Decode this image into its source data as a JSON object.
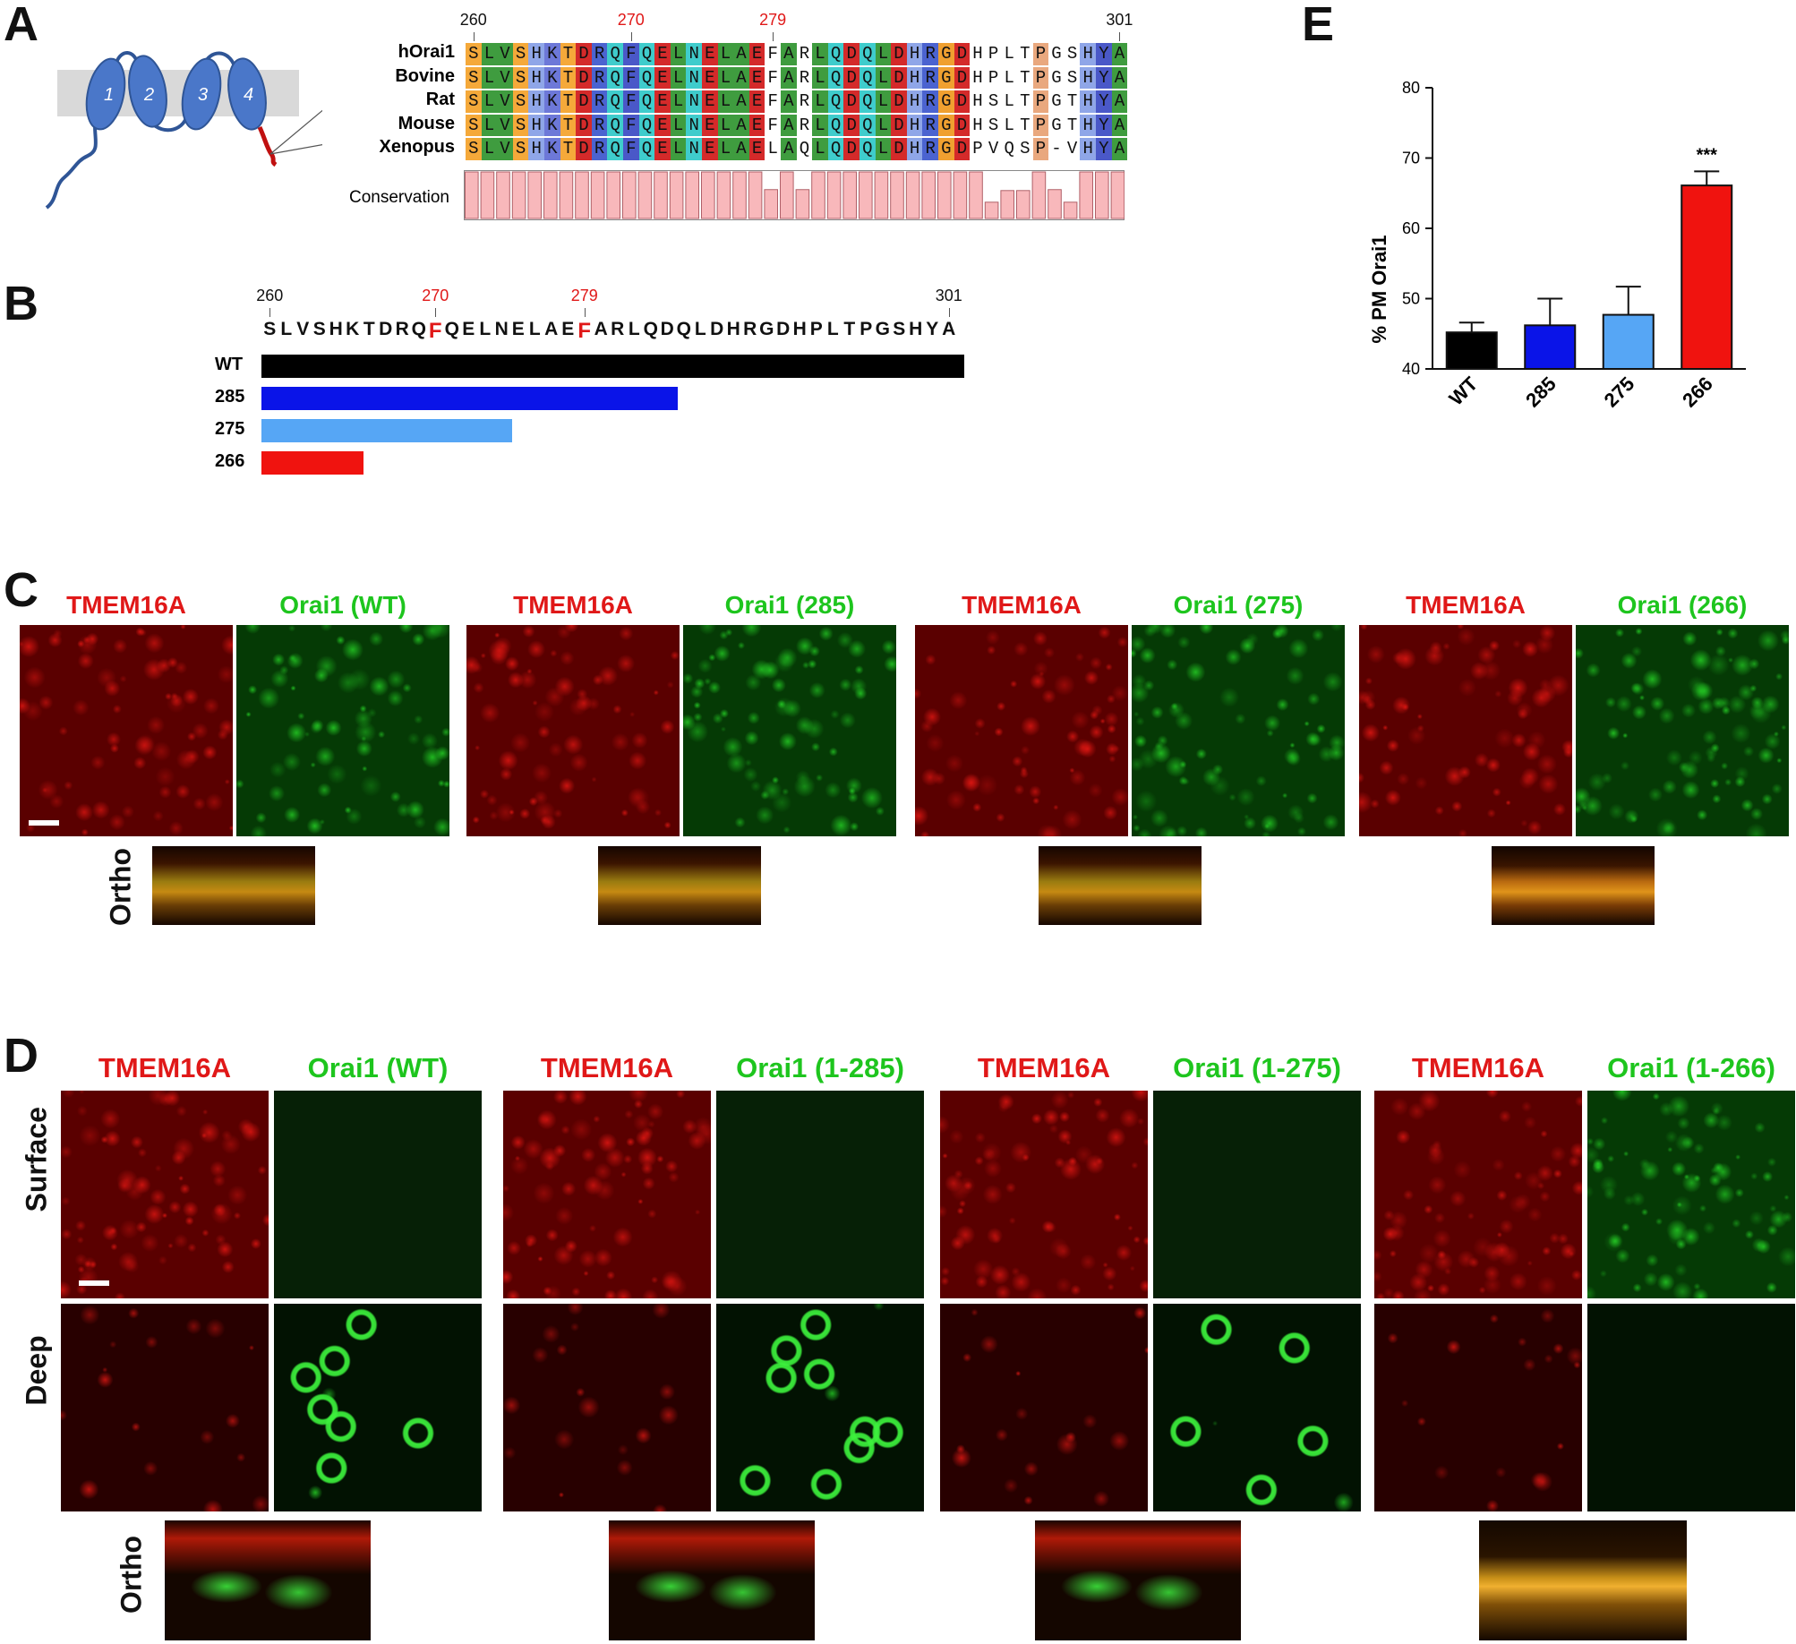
{
  "panel_letters": {
    "a": "A",
    "b": "B",
    "c": "C",
    "d": "D",
    "e": "E"
  },
  "panel_a": {
    "helix_numbers": [
      "1",
      "2",
      "3",
      "4"
    ],
    "tick_labels": [
      "260",
      "270",
      "279",
      "301"
    ],
    "species": [
      "hOrai1",
      "Bovine",
      "Rat",
      "Mouse",
      "Xenopus"
    ],
    "sequences": [
      "SLVSHKTDRQFQELNELAEFARLQDQLDHRGDHPLTPGSHYA",
      "SLVSHKTDRQFQELNELAEFARLQDQLDHRGDHPLTPGSHYA",
      "SLVSHKTDRQFQELNELAEFARLQDQLDHRGDHSLTPGTHYA",
      "SLVSHKTDRQFQELNELAEFARLQDQLDHRGDHSLTPGTHYA",
      "SLVSHKTDRQFQELNELAELAQLQDQLDHRGDPVQSP-VHYA"
    ],
    "conservation_label": "Conservation",
    "conservation": [
      1,
      1,
      1,
      1,
      1,
      1,
      1,
      1,
      1,
      1,
      1,
      1,
      1,
      1,
      1,
      1,
      1,
      1,
      1,
      0.62,
      1,
      0.62,
      1,
      1,
      1,
      1,
      1,
      1,
      1,
      1,
      1,
      1,
      1,
      0.35,
      0.6,
      0.6,
      1,
      0.62,
      0.35,
      1,
      1,
      1
    ],
    "highlight_color": "#e01818"
  },
  "panel_b": {
    "tick_labels": [
      "260",
      "270",
      "279",
      "301"
    ],
    "sequence": "SLVSHKTDRQFQELNELAEFARLQDQLDHRGDHPLTPGSHYA",
    "constructs": [
      {
        "label": "WT",
        "end": 301,
        "color": "#000000"
      },
      {
        "label": "285",
        "end": 285,
        "color": "#0a14e8"
      },
      {
        "label": "275",
        "end": 275,
        "color": "#56a6f5"
      },
      {
        "label": "266",
        "end": 266,
        "color": "#f0130f"
      }
    ]
  },
  "panel_c": {
    "groups": [
      {
        "red": "TMEM16A",
        "green": "Orai1 (WT)"
      },
      {
        "red": "TMEM16A",
        "green": "Orai1 (285)"
      },
      {
        "red": "TMEM16A",
        "green": "Orai1 (275)"
      },
      {
        "red": "TMEM16A",
        "green": "Orai1 (266)"
      }
    ],
    "ortho_label": "Ortho"
  },
  "panel_d": {
    "groups": [
      {
        "red": "TMEM16A",
        "green": "Orai1 (WT)"
      },
      {
        "red": "TMEM16A",
        "green": "Orai1 (1-285)"
      },
      {
        "red": "TMEM16A",
        "green": "Orai1 (1-275)"
      },
      {
        "red": "TMEM16A",
        "green": "Orai1 (1-266)"
      }
    ],
    "row_labels": {
      "surface": "Surface",
      "deep": "Deep",
      "ortho": "Ortho"
    }
  },
  "chart_data": {
    "type": "bar",
    "categories": [
      "WT",
      "285",
      "275",
      "266"
    ],
    "values": [
      45.2,
      46.2,
      47.7,
      66.1
    ],
    "errors": [
      1.4,
      3.8,
      4.0,
      2.0
    ],
    "colors": [
      "#000000",
      "#0a14e8",
      "#56a6f5",
      "#f0130f"
    ],
    "ylabel": "% PM Orai1",
    "ylim": [
      40,
      80
    ],
    "yticks": [
      40,
      50,
      60,
      70,
      80
    ],
    "annotation": {
      "category": "266",
      "text": "***"
    }
  }
}
